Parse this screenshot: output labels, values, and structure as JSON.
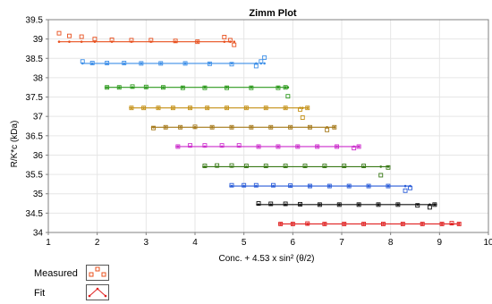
{
  "chart_data": {
    "type": "scatter",
    "title": "Zimm Plot",
    "xlabel": "Conc. + 4.53 x sin² (θ/2)",
    "ylabel": "R/K*c (kDa)",
    "xlim": [
      1,
      10
    ],
    "ylim": [
      34,
      39.5
    ],
    "xticks": [
      "1",
      "2",
      "3",
      "4",
      "5",
      "6",
      "7",
      "8",
      "9",
      "10"
    ],
    "yticks": [
      "34",
      "34.5",
      "35",
      "35.5",
      "36",
      "36.5",
      "37",
      "37.5",
      "38",
      "38.5",
      "39",
      "39.5"
    ],
    "grid": true,
    "legend_position": "bottom-left",
    "legend": [
      {
        "label": "Measured",
        "kind": "measured"
      },
      {
        "label": "Fit",
        "kind": "fit"
      }
    ],
    "series": [
      {
        "color": "#e8501e",
        "x_start": 1.2,
        "x_end": 4.75,
        "y": 38.93,
        "points": [
          [
            1.22,
            39.15
          ],
          [
            1.43,
            39.08
          ],
          [
            1.68,
            39.06
          ],
          [
            1.95,
            39.0
          ],
          [
            2.3,
            38.98
          ],
          [
            2.7,
            38.97
          ],
          [
            3.1,
            38.97
          ],
          [
            3.6,
            38.95
          ],
          [
            4.05,
            38.93
          ],
          [
            4.6,
            39.05
          ],
          [
            4.72,
            38.97
          ],
          [
            4.8,
            38.85
          ]
        ]
      },
      {
        "color": "#3d8fe8",
        "x_start": 1.68,
        "x_end": 5.3,
        "y": 38.37,
        "points": [
          [
            1.7,
            38.42
          ],
          [
            1.9,
            38.38
          ],
          [
            2.2,
            38.38
          ],
          [
            2.55,
            38.38
          ],
          [
            2.9,
            38.37
          ],
          [
            3.3,
            38.37
          ],
          [
            3.8,
            38.37
          ],
          [
            4.3,
            38.36
          ],
          [
            4.75,
            38.35
          ],
          [
            5.25,
            38.3
          ],
          [
            5.35,
            38.42
          ],
          [
            5.42,
            38.52
          ]
        ]
      },
      {
        "color": "#2e9a1e",
        "x_start": 2.15,
        "x_end": 5.85,
        "y": 37.75,
        "points": [
          [
            2.2,
            37.75
          ],
          [
            2.45,
            37.75
          ],
          [
            2.72,
            37.77
          ],
          [
            3.0,
            37.76
          ],
          [
            3.35,
            37.75
          ],
          [
            3.75,
            37.74
          ],
          [
            4.2,
            37.74
          ],
          [
            4.65,
            37.74
          ],
          [
            5.15,
            37.74
          ],
          [
            5.7,
            37.74
          ],
          [
            5.85,
            37.75
          ],
          [
            5.9,
            37.52
          ]
        ]
      },
      {
        "color": "#c49015",
        "x_start": 2.65,
        "x_end": 6.3,
        "y": 37.22,
        "points": [
          [
            2.7,
            37.22
          ],
          [
            2.95,
            37.22
          ],
          [
            3.25,
            37.22
          ],
          [
            3.55,
            37.22
          ],
          [
            3.9,
            37.22
          ],
          [
            4.25,
            37.22
          ],
          [
            4.65,
            37.22
          ],
          [
            5.05,
            37.22
          ],
          [
            5.45,
            37.22
          ],
          [
            5.85,
            37.22
          ],
          [
            6.15,
            37.18
          ],
          [
            6.2,
            36.97
          ],
          [
            6.3,
            37.22
          ]
        ]
      },
      {
        "color": "#a5791a",
        "x_start": 3.1,
        "x_end": 6.85,
        "y": 36.72,
        "points": [
          [
            3.15,
            36.7
          ],
          [
            3.4,
            36.72
          ],
          [
            3.7,
            36.72
          ],
          [
            4.0,
            36.73
          ],
          [
            4.35,
            36.72
          ],
          [
            4.75,
            36.72
          ],
          [
            5.15,
            36.72
          ],
          [
            5.55,
            36.72
          ],
          [
            5.95,
            36.72
          ],
          [
            6.35,
            36.72
          ],
          [
            6.7,
            36.65
          ],
          [
            6.85,
            36.72
          ]
        ]
      },
      {
        "color": "#cc2ecc",
        "x_start": 3.6,
        "x_end": 7.35,
        "y": 36.22,
        "points": [
          [
            3.65,
            36.22
          ],
          [
            3.9,
            36.25
          ],
          [
            4.2,
            36.25
          ],
          [
            4.55,
            36.25
          ],
          [
            4.9,
            36.25
          ],
          [
            5.3,
            36.22
          ],
          [
            5.7,
            36.22
          ],
          [
            6.1,
            36.22
          ],
          [
            6.5,
            36.22
          ],
          [
            6.9,
            36.22
          ],
          [
            7.25,
            36.18
          ],
          [
            7.35,
            36.22
          ]
        ]
      },
      {
        "color": "#3a7a18",
        "x_start": 4.15,
        "x_end": 7.95,
        "y": 35.7,
        "points": [
          [
            4.2,
            35.72
          ],
          [
            4.45,
            35.73
          ],
          [
            4.75,
            35.73
          ],
          [
            5.05,
            35.72
          ],
          [
            5.45,
            35.72
          ],
          [
            5.85,
            35.72
          ],
          [
            6.25,
            35.72
          ],
          [
            6.65,
            35.72
          ],
          [
            7.05,
            35.72
          ],
          [
            7.45,
            35.72
          ],
          [
            7.8,
            35.48
          ],
          [
            7.95,
            35.68
          ]
        ]
      },
      {
        "color": "#2a5cd8",
        "x_start": 4.7,
        "x_end": 8.4,
        "y": 35.2,
        "points": [
          [
            4.75,
            35.22
          ],
          [
            5.0,
            35.22
          ],
          [
            5.25,
            35.22
          ],
          [
            5.6,
            35.22
          ],
          [
            5.95,
            35.21
          ],
          [
            6.35,
            35.2
          ],
          [
            6.75,
            35.2
          ],
          [
            7.15,
            35.2
          ],
          [
            7.55,
            35.2
          ],
          [
            7.95,
            35.2
          ],
          [
            8.3,
            35.08
          ],
          [
            8.4,
            35.15
          ]
        ]
      },
      {
        "color": "#111111",
        "x_start": 5.25,
        "x_end": 8.95,
        "y": 34.72,
        "points": [
          [
            5.3,
            34.75
          ],
          [
            5.55,
            34.74
          ],
          [
            5.85,
            34.74
          ],
          [
            6.15,
            34.73
          ],
          [
            6.55,
            34.72
          ],
          [
            6.95,
            34.72
          ],
          [
            7.35,
            34.72
          ],
          [
            7.75,
            34.72
          ],
          [
            8.15,
            34.72
          ],
          [
            8.55,
            34.7
          ],
          [
            8.8,
            34.65
          ],
          [
            8.9,
            34.72
          ]
        ]
      },
      {
        "color": "#e02020",
        "x_start": 5.7,
        "x_end": 9.4,
        "y": 34.22,
        "points": [
          [
            5.75,
            34.22
          ],
          [
            6.0,
            34.22
          ],
          [
            6.3,
            34.23
          ],
          [
            6.65,
            34.22
          ],
          [
            7.05,
            34.22
          ],
          [
            7.45,
            34.22
          ],
          [
            7.85,
            34.22
          ],
          [
            8.25,
            34.22
          ],
          [
            8.65,
            34.22
          ],
          [
            9.05,
            34.22
          ],
          [
            9.25,
            34.24
          ],
          [
            9.4,
            34.22
          ]
        ]
      }
    ]
  }
}
